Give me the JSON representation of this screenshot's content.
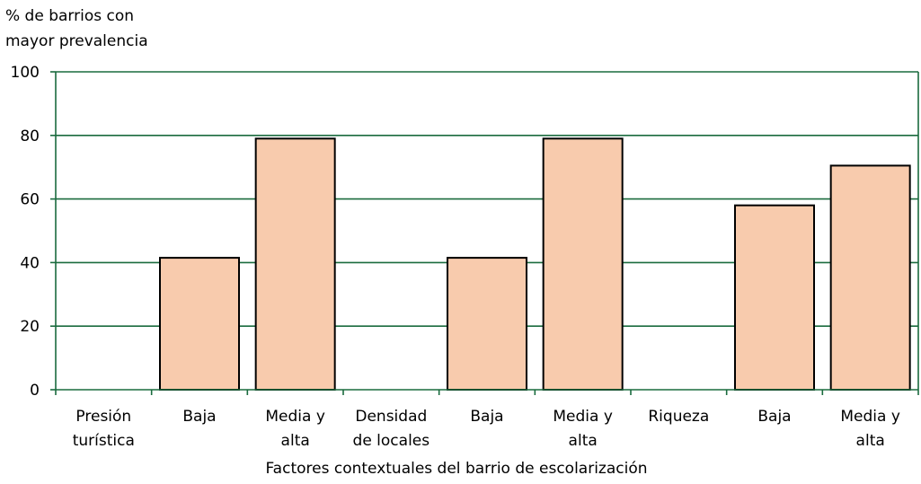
{
  "chart_data": {
    "type": "bar",
    "title": "",
    "ylabel_lines": [
      "% de barrios con",
      "mayor prevalencia"
    ],
    "xlabel": "Factores contextuales del barrio de escolarización",
    "ylim": [
      0,
      100
    ],
    "yticks": [
      0,
      20,
      40,
      60,
      80,
      100
    ],
    "grid": true,
    "categories": [
      [
        "Presión",
        "turística"
      ],
      [
        "Baja"
      ],
      [
        "Media y",
        "alta"
      ],
      [
        "Densidad",
        "de locales"
      ],
      [
        "Baja"
      ],
      [
        "Media y",
        "alta"
      ],
      [
        "Riqueza"
      ],
      [
        "Baja"
      ],
      [
        "Media y",
        "alta"
      ]
    ],
    "values": [
      null,
      41.5,
      79,
      null,
      41.5,
      79,
      null,
      58,
      70.5
    ],
    "colors": {
      "bar_fill": "#f8cbad",
      "bar_stroke": "#000000",
      "grid": "#1a6b3e",
      "axis": "#1a6b3e"
    }
  }
}
